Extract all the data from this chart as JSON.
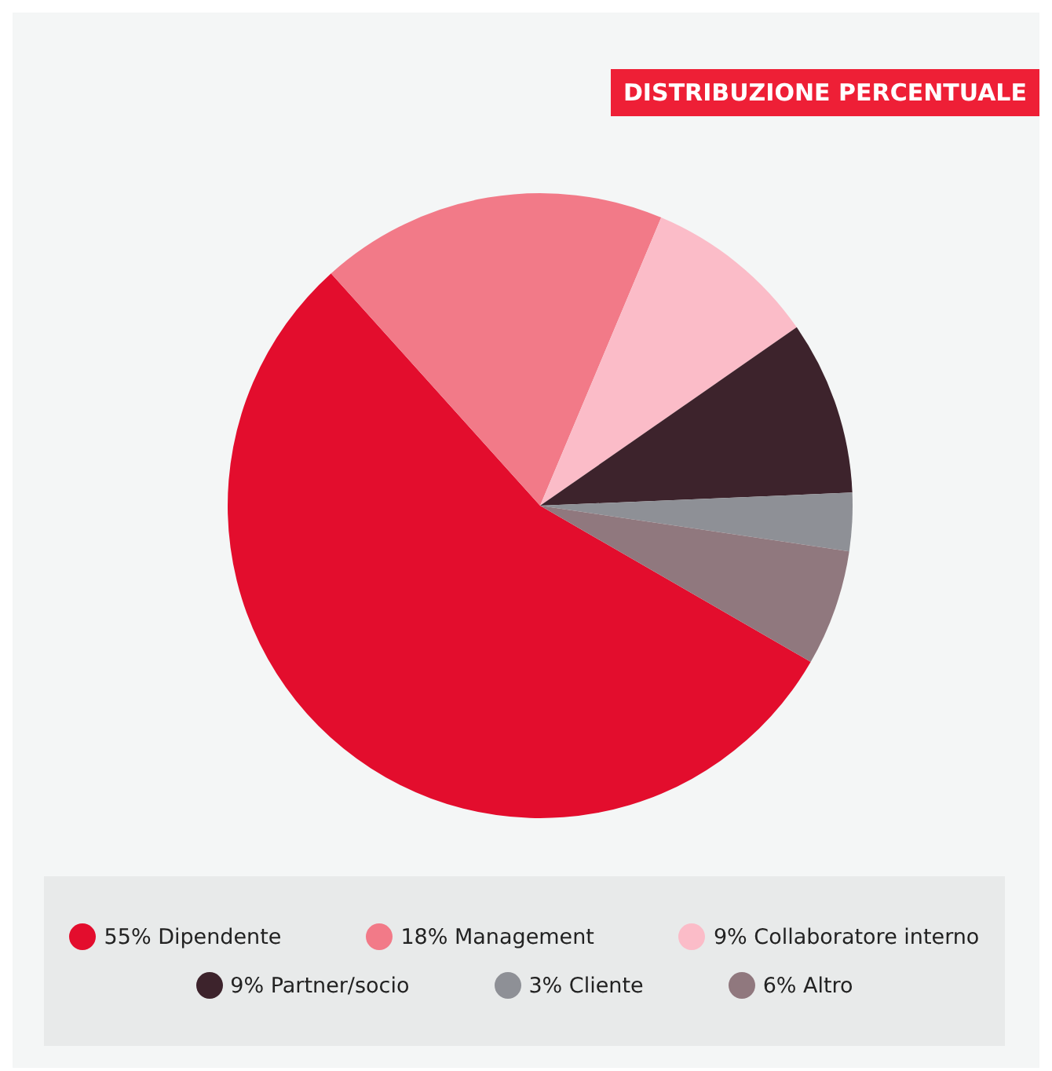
{
  "chart_data": {
    "type": "pie",
    "title": "DISTRIBUZIONE PERCENTUALE",
    "categories": [
      "Dipendente",
      "Management",
      "Collaboratore interno",
      "Partner/socio",
      "Cliente",
      "Altro"
    ],
    "values": [
      55,
      18,
      9,
      9,
      3,
      6
    ],
    "value_labels": [
      "55%",
      "18%",
      "9%",
      "9%",
      "3%",
      "6%"
    ],
    "colors": [
      "#e30d2d",
      "#f27a88",
      "#fbbcc8",
      "#3d232c",
      "#8e9096",
      "#90787e"
    ],
    "legend": "bottom"
  }
}
